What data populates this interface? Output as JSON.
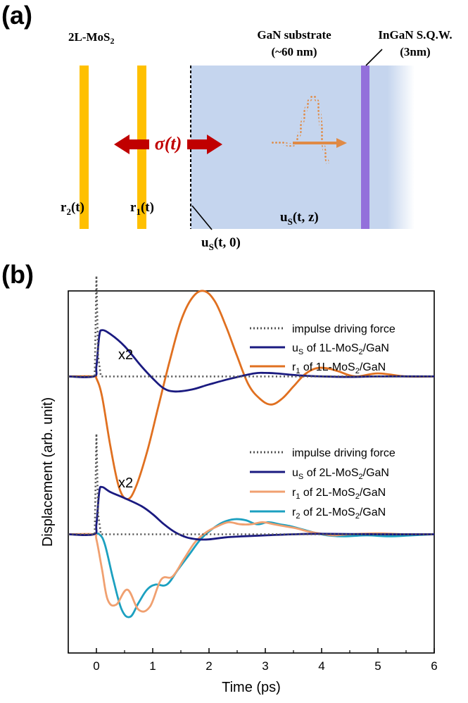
{
  "panel_a": {
    "label": "(a)",
    "mos2_title": "2L-MoS",
    "mos2_title_sub": "2",
    "gan_line1": "GaN substrate",
    "gan_line2": "(~60 nm)",
    "ingan_line1": "InGaN S.Q.W.",
    "ingan_line2": "(3nm)",
    "sigma_label": "σ(t)",
    "r2_base": "r",
    "r2_sub": "2",
    "r2_arg": "(t)",
    "r1_base": "r",
    "r1_sub": "1",
    "r1_arg": "(t)",
    "uS0_base": "u",
    "uS0_sub": "S",
    "uS0_arg": "(t, 0)",
    "uStz_base": "u",
    "uStz_sub": "S",
    "uStz_arg": "(t, z)",
    "colors": {
      "layer": "#ffc000",
      "substrate": "#c5d5ee",
      "qw": "#9370db",
      "arrow_red": "#c00000",
      "pulse": "#e08a45"
    }
  },
  "chart_data": {
    "panel_label": "(b)",
    "type": "line",
    "xlabel": "Time (ps)",
    "ylabel": "Displacement (arb. unit)",
    "xlim": [
      -0.5,
      6
    ],
    "xticks": [
      "0",
      "1",
      "2",
      "3",
      "4",
      "5",
      "6"
    ],
    "xtick_values": [
      0,
      1,
      2,
      3,
      4,
      5,
      6
    ],
    "ylim": [
      -2.0,
      1.6
    ],
    "annotations": [
      "x2",
      "x2"
    ],
    "legend_top": [
      {
        "name": "impulse driving force",
        "sub": "",
        "suffix": ""
      },
      {
        "name": "u",
        "sub": "S",
        "suffix": " of 1L-MoS",
        "sub2": "2",
        "suffix2": "/GaN"
      },
      {
        "name": "r",
        "sub": "1",
        "suffix": " of 1L-MoS",
        "sub2": "2",
        "suffix2": "/GaN"
      }
    ],
    "legend_bottom": [
      {
        "name": "impulse driving force",
        "sub": "",
        "suffix": ""
      },
      {
        "name": "u",
        "sub": "S",
        "suffix": " of 2L-MoS",
        "sub2": "2",
        "suffix2": "/GaN"
      },
      {
        "name": "r",
        "sub": "1",
        "suffix": " of 2L-MoS",
        "sub2": "2",
        "suffix2": "/GaN"
      },
      {
        "name": "r",
        "sub": "2",
        "suffix": " of 2L-MoS",
        "sub2": "2",
        "suffix2": "/GaN"
      }
    ],
    "series": [
      {
        "name": "impulse driving force (1L)",
        "group": "top",
        "baseline": 0.75,
        "color": "#555555",
        "dashed": true,
        "x": [
          -0.5,
          -0.03,
          0.0,
          0.03,
          0.08,
          6.0
        ],
        "y": [
          0,
          0,
          1.0,
          0.2,
          0,
          0
        ]
      },
      {
        "name": "uS of 1L-MoS2/GaN",
        "group": "top",
        "baseline": 0.75,
        "color": "#1a1a80",
        "dashed": false,
        "x": [
          -0.5,
          -0.05,
          0.0,
          0.05,
          0.1,
          0.25,
          0.5,
          0.8,
          1.0,
          1.2,
          1.4,
          1.7,
          2.0,
          2.4,
          2.8,
          3.0,
          3.2,
          3.6,
          4.0,
          4.5,
          5.0,
          6.0
        ],
        "y": [
          0,
          0,
          0.1,
          0.4,
          0.46,
          0.42,
          0.3,
          0.1,
          -0.02,
          -0.12,
          -0.15,
          -0.13,
          -0.08,
          -0.02,
          0.03,
          0.035,
          0.03,
          0.01,
          0,
          -0.005,
          0,
          0
        ]
      },
      {
        "name": "r1 of 1L-MoS2/GaN",
        "group": "top",
        "baseline": 0.75,
        "color": "#e07020",
        "dashed": false,
        "x": [
          -0.5,
          -0.05,
          0.0,
          0.1,
          0.25,
          0.4,
          0.55,
          0.7,
          0.9,
          1.1,
          1.3,
          1.5,
          1.7,
          1.9,
          2.1,
          2.3,
          2.5,
          2.7,
          2.9,
          3.1,
          3.3,
          3.5,
          3.7,
          3.9,
          4.1,
          4.3,
          4.6,
          5.0,
          5.5,
          6.0
        ],
        "y": [
          0,
          0,
          -0.02,
          -0.2,
          -0.7,
          -1.1,
          -1.22,
          -1.1,
          -0.75,
          -0.3,
          0.15,
          0.55,
          0.78,
          0.85,
          0.75,
          0.5,
          0.2,
          -0.08,
          -0.22,
          -0.28,
          -0.22,
          -0.1,
          0.02,
          0.08,
          0.08,
          0.05,
          0,
          0.03,
          0,
          0
        ]
      },
      {
        "name": "impulse driving force (2L)",
        "group": "bottom",
        "baseline": -0.82,
        "color": "#555555",
        "dashed": true,
        "x": [
          -0.5,
          -0.03,
          0.0,
          0.03,
          0.08,
          6.0
        ],
        "y": [
          0,
          0,
          1.0,
          0.2,
          0,
          0
        ]
      },
      {
        "name": "uS of 2L-MoS2/GaN",
        "group": "bottom",
        "baseline": -0.82,
        "color": "#1a1a80",
        "dashed": false,
        "x": [
          -0.5,
          -0.05,
          0.0,
          0.05,
          0.1,
          0.25,
          0.5,
          0.8,
          1.0,
          1.2,
          1.4,
          1.6,
          1.8,
          2.0,
          2.3,
          2.6,
          3.0,
          3.5,
          4.0,
          5.0,
          6.0
        ],
        "y": [
          0,
          0,
          0.1,
          0.42,
          0.47,
          0.42,
          0.36,
          0.28,
          0.2,
          0.1,
          0.02,
          -0.03,
          -0.05,
          -0.05,
          -0.03,
          -0.02,
          -0.01,
          0,
          0.005,
          0,
          0
        ]
      },
      {
        "name": "r1 of 2L-MoS2/GaN",
        "group": "bottom",
        "baseline": -0.82,
        "color": "#f0a070",
        "dashed": false,
        "x": [
          -0.5,
          -0.05,
          0.0,
          0.1,
          0.2,
          0.35,
          0.55,
          0.75,
          0.95,
          1.15,
          1.35,
          1.55,
          1.75,
          1.95,
          2.15,
          2.35,
          2.55,
          2.75,
          2.95,
          3.15,
          3.35,
          3.55,
          3.75,
          3.95,
          4.2,
          4.5,
          5.0,
          5.5,
          6.0
        ],
        "y": [
          0,
          0,
          -0.05,
          -0.35,
          -0.65,
          -0.7,
          -0.55,
          -0.75,
          -0.72,
          -0.45,
          -0.42,
          -0.25,
          -0.08,
          0.02,
          0.08,
          0.12,
          0.1,
          0.1,
          0.12,
          0.1,
          0.08,
          0.06,
          0.03,
          0.01,
          -0.01,
          0,
          0.01,
          0,
          0
        ]
      },
      {
        "name": "r2 of 2L-MoS2/GaN",
        "group": "bottom",
        "baseline": -0.82,
        "color": "#1ca0c0",
        "dashed": false,
        "x": [
          -0.5,
          -0.05,
          0.05,
          0.15,
          0.3,
          0.45,
          0.6,
          0.75,
          0.9,
          1.05,
          1.25,
          1.45,
          1.65,
          1.85,
          2.05,
          2.25,
          2.45,
          2.65,
          2.85,
          3.05,
          3.25,
          3.45,
          3.65,
          3.85,
          4.1,
          4.4,
          4.8,
          5.2,
          5.6,
          6.0
        ],
        "y": [
          0,
          0,
          0,
          -0.1,
          -0.45,
          -0.75,
          -0.82,
          -0.68,
          -0.55,
          -0.5,
          -0.5,
          -0.35,
          -0.2,
          -0.05,
          0.05,
          0.12,
          0.15,
          0.14,
          0.1,
          0.12,
          0.1,
          0.08,
          0.05,
          0.02,
          -0.01,
          -0.02,
          -0.01,
          -0.02,
          -0.01,
          0
        ]
      }
    ]
  }
}
